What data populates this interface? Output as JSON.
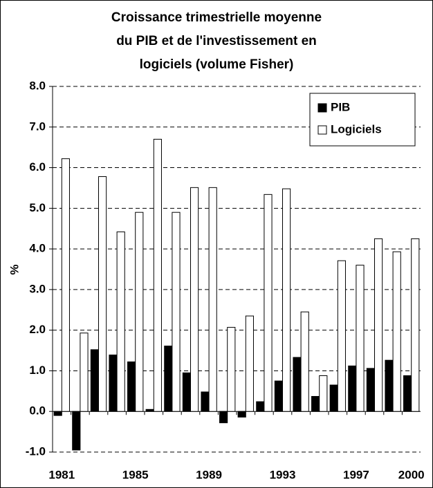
{
  "chart_data": {
    "type": "bar",
    "title": [
      "Croissance trimestrielle moyenne",
      "du PIB et de l'investissement en",
      "logiciels (volume Fisher)"
    ],
    "y_label": "%",
    "categories": [
      "1981",
      null,
      null,
      null,
      "1985",
      null,
      null,
      null,
      "1989",
      null,
      null,
      null,
      "1993",
      null,
      null,
      null,
      "1997",
      null,
      null,
      "2000"
    ],
    "series": [
      {
        "name": "PIB",
        "color": "#000000",
        "values": [
          -0.1,
          -0.95,
          1.52,
          1.39,
          1.22,
          0.05,
          1.61,
          0.95,
          0.48,
          -0.28,
          -0.14,
          0.24,
          0.75,
          1.33,
          0.37,
          0.65,
          1.12,
          1.06,
          1.26,
          0.88
        ]
      },
      {
        "name": "Logiciels",
        "color": "#ffffff",
        "values": [
          6.22,
          1.93,
          5.78,
          4.42,
          4.9,
          6.7,
          4.9,
          5.51,
          5.51,
          2.07,
          2.35,
          5.34,
          5.48,
          2.45,
          0.88,
          3.71,
          3.6,
          4.25,
          3.93,
          4.25
        ]
      }
    ],
    "ylim": [
      -1,
      8
    ],
    "yticks": [
      {
        "value": -1,
        "label": "-1.0"
      },
      {
        "value": 0,
        "label": "0.0"
      },
      {
        "value": 1,
        "label": "1.0"
      },
      {
        "value": 2,
        "label": "2.0"
      },
      {
        "value": 3,
        "label": "3.0"
      },
      {
        "value": 4,
        "label": "4.0"
      },
      {
        "value": 5,
        "label": "5.0"
      },
      {
        "value": 6,
        "label": "6.0"
      },
      {
        "value": 7,
        "label": "7.0"
      },
      {
        "value": 8,
        "label": "8.0"
      }
    ],
    "grid": true,
    "legend": "upper right"
  }
}
